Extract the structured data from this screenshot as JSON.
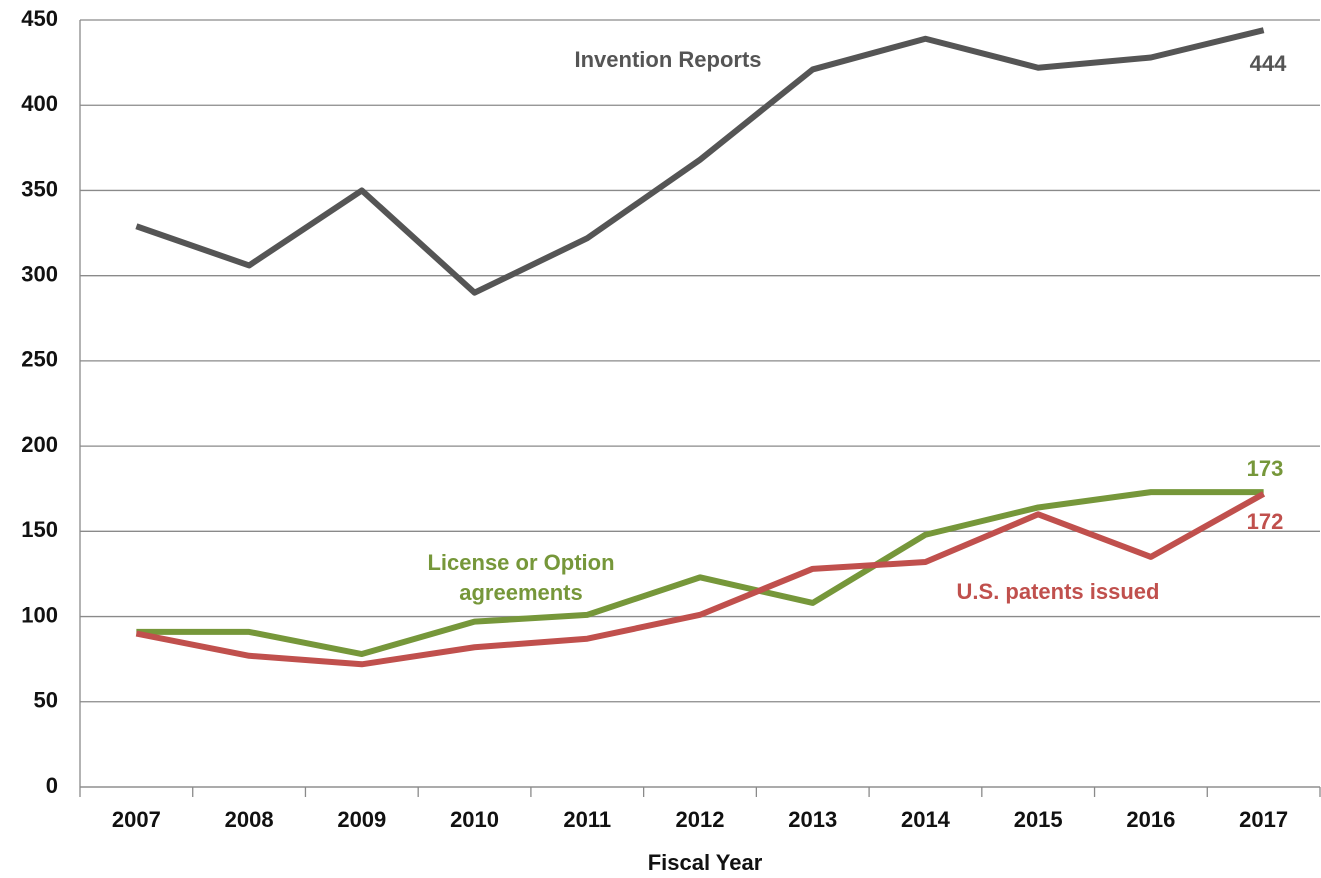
{
  "chart_data": {
    "type": "line",
    "x_label": "Fiscal Year",
    "categories": [
      "2007",
      "2008",
      "2009",
      "2010",
      "2011",
      "2012",
      "2013",
      "2014",
      "2015",
      "2016",
      "2017"
    ],
    "series": [
      {
        "name": "Invention Reports",
        "color": "#555555",
        "values": [
          329,
          306,
          350,
          290,
          322,
          368,
          421,
          439,
          422,
          428,
          444
        ]
      },
      {
        "name": "License or Option agreements",
        "color": "#76973a",
        "values": [
          91,
          91,
          78,
          97,
          101,
          123,
          108,
          148,
          164,
          173,
          173
        ]
      },
      {
        "name": "U.S. patents issued",
        "color": "#c0504d",
        "values": [
          90,
          77,
          72,
          82,
          87,
          101,
          128,
          132,
          160,
          135,
          172
        ]
      }
    ],
    "ylim": [
      0,
      450
    ],
    "yticks": [
      0,
      50,
      100,
      150,
      200,
      250,
      300,
      350,
      400,
      450
    ],
    "grid": true
  }
}
